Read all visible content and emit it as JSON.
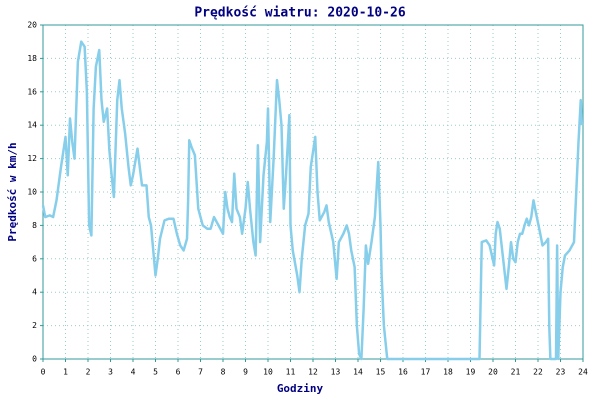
{
  "chart_data": {
    "type": "line",
    "title": "Prędkość wiatru: 2020-10-26",
    "x_label": "Godziny",
    "y_label": "Prędkość w km/h",
    "color": "#87ceeb",
    "grid": true,
    "xlim": [
      0,
      24
    ],
    "ylim": [
      0,
      20
    ],
    "xticks": [
      0,
      1,
      2,
      3,
      4,
      5,
      6,
      7,
      8,
      9,
      10,
      11,
      12,
      13,
      14,
      15,
      16,
      17,
      18,
      19,
      20,
      21,
      22,
      23,
      24
    ],
    "yticks": [
      0,
      2,
      4,
      6,
      8,
      10,
      12,
      14,
      16,
      18,
      20
    ],
    "x": [
      0,
      0.1,
      0.3,
      0.45,
      0.6,
      0.8,
      1.0,
      1.1,
      1.2,
      1.3,
      1.4,
      1.55,
      1.7,
      1.85,
      1.95,
      2.05,
      2.15,
      2.25,
      2.35,
      2.5,
      2.6,
      2.7,
      2.85,
      2.95,
      3.05,
      3.15,
      3.3,
      3.4,
      3.5,
      3.65,
      3.8,
      3.9,
      4.0,
      4.1,
      4.2,
      4.3,
      4.4,
      4.6,
      4.7,
      4.8,
      4.9,
      5.0,
      5.1,
      5.2,
      5.4,
      5.6,
      5.8,
      5.95,
      6.1,
      6.25,
      6.4,
      6.45,
      6.5,
      6.6,
      6.75,
      6.9,
      7.1,
      7.3,
      7.45,
      7.6,
      7.8,
      8.0,
      8.1,
      8.2,
      8.3,
      8.4,
      8.5,
      8.6,
      8.75,
      8.85,
      9.0,
      9.1,
      9.2,
      9.35,
      9.45,
      9.55,
      9.65,
      9.8,
      9.95,
      10.0,
      10.1,
      10.25,
      10.4,
      10.5,
      10.6,
      10.7,
      10.8,
      10.95,
      11.0,
      11.1,
      11.3,
      11.4,
      11.5,
      11.65,
      11.8,
      11.9,
      12.1,
      12.2,
      12.3,
      12.5,
      12.6,
      12.7,
      12.9,
      13.05,
      13.15,
      13.35,
      13.5,
      13.6,
      13.7,
      13.85,
      13.95,
      14.05,
      14.15,
      14.25,
      14.35,
      14.45,
      14.6,
      14.75,
      14.9,
      15.0,
      15.05,
      15.15,
      15.3,
      17,
      19.4,
      19.5,
      19.7,
      19.85,
      19.95,
      20.05,
      20.12,
      20.2,
      20.3,
      20.45,
      20.6,
      20.7,
      20.8,
      20.9,
      21.0,
      21.1,
      21.2,
      21.3,
      21.4,
      21.5,
      21.6,
      21.7,
      21.8,
      21.9,
      22.1,
      22.2,
      22.35,
      22.45,
      22.5,
      22.55,
      22.8,
      22.85,
      22.9,
      23.0,
      23.1,
      23.2,
      23.4,
      23.6,
      23.7,
      23.8,
      23.9,
      23.95
    ],
    "values": [
      9.2,
      8.5,
      8.6,
      8.5,
      9.5,
      11.5,
      13.3,
      11,
      14.4,
      13,
      12,
      17.8,
      19,
      18.7,
      16,
      8,
      7.4,
      15,
      17.5,
      18.5,
      15.5,
      14.2,
      15,
      12.5,
      11,
      9.7,
      15.5,
      16.7,
      15,
      13.5,
      11.5,
      10.4,
      11,
      11.8,
      12.6,
      11.5,
      10.4,
      10.4,
      8.5,
      8,
      6.5,
      5,
      6,
      7.2,
      8.3,
      8.4,
      8.4,
      7.5,
      6.8,
      6.5,
      7.2,
      9.5,
      13.1,
      12.7,
      12.2,
      9,
      8,
      7.8,
      7.8,
      8.5,
      8,
      7.5,
      10,
      9,
      8.5,
      8.2,
      11.1,
      9,
      8.5,
      7.5,
      9,
      10.6,
      9,
      7,
      6.2,
      12.8,
      7,
      11,
      13,
      15,
      8.2,
      12,
      16.7,
      15.5,
      14,
      9,
      11,
      14.6,
      8,
      6.5,
      5,
      4,
      6,
      8,
      8.7,
      11.5,
      13.3,
      10,
      8.3,
      8.8,
      9.2,
      8.2,
      7,
      4.8,
      7,
      7.5,
      8,
      7.5,
      6.5,
      5.5,
      2,
      0.3,
      0,
      3,
      6.8,
      5.7,
      7,
      8.5,
      11.8,
      8,
      5,
      2,
      0,
      0,
      0,
      7,
      7.1,
      6.8,
      6.2,
      5.6,
      7.5,
      8.2,
      7.8,
      6,
      4.2,
      5.5,
      7,
      6,
      5.8,
      7,
      7.5,
      7.5,
      8,
      8.4,
      8,
      8.5,
      9.5,
      8.8,
      7.5,
      6.8,
      7,
      7.2,
      2,
      0,
      0,
      6.8,
      0,
      4,
      5.5,
      6.2,
      6.5,
      7,
      10,
      13,
      15.5,
      14
    ]
  }
}
